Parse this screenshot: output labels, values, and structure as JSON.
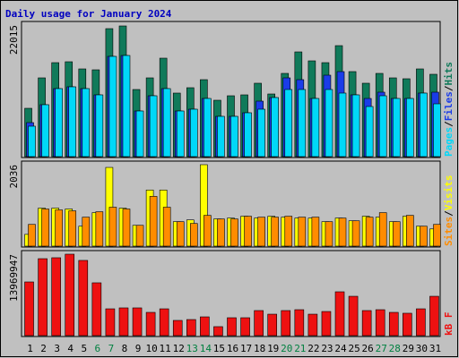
{
  "chart_data": [
    {
      "type": "bar",
      "title": "Daily usage for January 2024",
      "categories": [
        "1",
        "2",
        "3",
        "4",
        "5",
        "6",
        "7",
        "8",
        "9",
        "10",
        "11",
        "12",
        "13",
        "14",
        "15",
        "16",
        "17",
        "18",
        "19",
        "20",
        "21",
        "22",
        "23",
        "24",
        "25",
        "26",
        "27",
        "28",
        "29",
        "30",
        "31"
      ],
      "category_colors": [
        "#000000",
        "#000000",
        "#000000",
        "#000000",
        "#000000",
        "#008040",
        "#008040",
        "#000000",
        "#000000",
        "#000000",
        "#000000",
        "#000000",
        "#008040",
        "#008040",
        "#000000",
        "#000000",
        "#000000",
        "#000000",
        "#000000",
        "#008040",
        "#008040",
        "#000000",
        "#000000",
        "#000000",
        "#000000",
        "#000000",
        "#008040",
        "#008040",
        "#000000",
        "#000000",
        "#000000"
      ],
      "legend_separator": "/",
      "ylim": [
        0,
        22015
      ],
      "yticks": [
        22015
      ],
      "series": [
        {
          "name": "Hits",
          "color": "#107a5a",
          "values": [
            8087,
            13179,
            15725,
            15875,
            14677,
            14527,
            21416,
            21865,
            11232,
            13179,
            16474,
            10633,
            11532,
            12880,
            9435,
            10184,
            10334,
            12281,
            10483,
            13928,
            17522,
            16025,
            15725,
            18571,
            14228,
            12281,
            13928,
            13179,
            13030,
            14677,
            13778
          ]
        },
        {
          "name": "Files",
          "color": "#1a3ce8",
          "values": [
            5691,
            8687,
            11382,
            11682,
            11382,
            10334,
            16774,
            16924,
            7638,
            10184,
            11382,
            7638,
            7937,
            9734,
            6739,
            6739,
            7338,
            9285,
            9884,
            13179,
            12880,
            9734,
            13628,
            14228,
            10334,
            9734,
            10783,
            9734,
            9734,
            10633,
            10783
          ]
        },
        {
          "name": "Pages",
          "color": "#00d8f8",
          "values": [
            5092,
            8687,
            11382,
            11682,
            11382,
            10334,
            16774,
            16924,
            7638,
            10184,
            11382,
            7638,
            7937,
            9734,
            6739,
            6739,
            7338,
            7937,
            9884,
            11232,
            11232,
            9734,
            11232,
            10633,
            10334,
            8387,
            10184,
            9734,
            9734,
            10633,
            8836
          ]
        }
      ]
    },
    {
      "type": "bar",
      "legend_separator": "/",
      "ylim": [
        0,
        2036
      ],
      "yticks": [
        2036
      ],
      "series": [
        {
          "name": "Visits",
          "color": "#ffff00",
          "values": [
            294,
            950,
            950,
            928,
            498,
            837,
            1968,
            950,
            520,
            1403,
            1403,
            611,
            656,
            2036,
            679,
            701,
            747,
            701,
            747,
            724,
            701,
            701,
            611,
            701,
            633,
            747,
            724,
            611,
            747,
            498,
            430
          ]
        },
        {
          "name": "Sites",
          "color": "#ff8c00",
          "values": [
            543,
            928,
            905,
            882,
            724,
            860,
            973,
            928,
            520,
            1244,
            973,
            611,
            566,
            769,
            679,
            679,
            747,
            724,
            724,
            747,
            724,
            724,
            611,
            701,
            633,
            724,
            837,
            611,
            769,
            498,
            543
          ]
        }
      ]
    },
    {
      "type": "bar",
      "ylim": [
        0,
        13969947
      ],
      "yticks": [
        13969947
      ],
      "series": [
        {
          "name": "kB F",
          "color": "#ee1111",
          "values": [
            9210000,
            13200000,
            13360000,
            13969947,
            12900000,
            9060000,
            4600000,
            4760000,
            4760000,
            3990000,
            4600000,
            2610000,
            2760000,
            3220000,
            1540000,
            3070000,
            3070000,
            4300000,
            3680000,
            4300000,
            4450000,
            3680000,
            4140000,
            7520000,
            6750000,
            4300000,
            4450000,
            3990000,
            3840000,
            4600000,
            6750000
          ]
        }
      ]
    }
  ]
}
